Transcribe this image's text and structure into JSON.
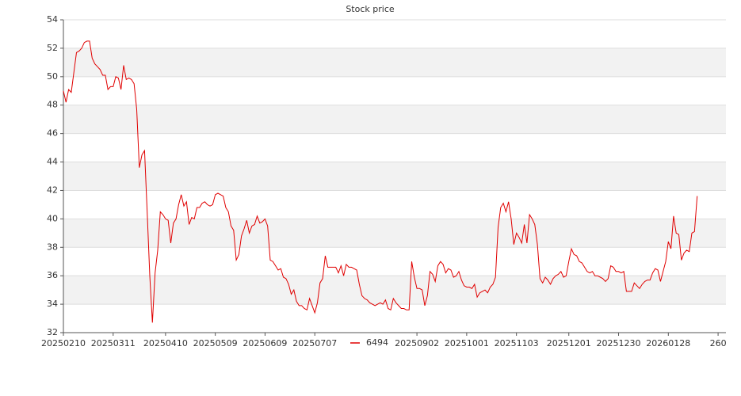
{
  "chart_data": {
    "type": "line",
    "title": "Stock price",
    "xlim": [
      0,
      253
    ],
    "xticks": [
      {
        "value": 0,
        "label": "20250210"
      },
      {
        "value": 19,
        "label": "20250311"
      },
      {
        "value": 39,
        "label": "20250410"
      },
      {
        "value": 58,
        "label": "20250509"
      },
      {
        "value": 77,
        "label": "20250609"
      },
      {
        "value": 96,
        "label": "20250707"
      },
      {
        "value": 135,
        "label": "20250902"
      },
      {
        "value": 154,
        "label": "20251001"
      },
      {
        "value": 173,
        "label": "20251103"
      },
      {
        "value": 193,
        "label": "20251201"
      },
      {
        "value": 212,
        "label": "20251230"
      },
      {
        "value": 231,
        "label": "20260128"
      },
      {
        "value": 250,
        "label": "260"
      }
    ],
    "ylim": [
      32,
      54
    ],
    "yticks": [
      32,
      34,
      36,
      38,
      40,
      42,
      44,
      46,
      48,
      50,
      52,
      54
    ],
    "grid": true,
    "legend": "bottom",
    "series": [
      {
        "name": "6494",
        "color": "#e00000",
        "values": [
          49.0,
          48.2,
          49.1,
          48.9,
          50.3,
          51.7,
          51.8,
          52.0,
          52.4,
          52.5,
          52.5,
          51.3,
          50.9,
          50.7,
          50.5,
          50.1,
          50.1,
          49.1,
          49.3,
          49.3,
          50.0,
          49.9,
          49.1,
          50.8,
          49.8,
          49.9,
          49.8,
          49.5,
          47.7,
          43.6,
          44.5,
          44.8,
          40.5,
          36.0,
          32.7,
          36.2,
          37.8,
          40.5,
          40.3,
          40.0,
          39.9,
          38.3,
          39.7,
          40.0,
          41.0,
          41.7,
          40.9,
          41.2,
          39.6,
          40.1,
          40.0,
          40.8,
          40.8,
          41.1,
          41.2,
          41.0,
          40.9,
          41.0,
          41.7,
          41.8,
          41.7,
          41.6,
          40.8,
          40.5,
          39.5,
          39.2,
          37.1,
          37.5,
          38.8,
          39.3,
          39.9,
          39.0,
          39.5,
          39.6,
          40.2,
          39.7,
          39.8,
          40.0,
          39.5,
          37.1,
          37.0,
          36.7,
          36.4,
          36.5,
          35.9,
          35.8,
          35.4,
          34.7,
          35.0,
          34.2,
          33.9,
          33.9,
          33.7,
          33.6,
          34.4,
          33.9,
          33.4,
          34.1,
          35.5,
          35.8,
          37.4,
          36.6,
          36.6,
          36.6,
          36.6,
          36.2,
          36.7,
          36.0,
          36.8,
          36.6,
          36.6,
          36.5,
          36.4,
          35.4,
          34.6,
          34.4,
          34.3,
          34.1,
          34.0,
          33.9,
          34.0,
          34.1,
          34.0,
          34.3,
          33.7,
          33.6,
          34.4,
          34.1,
          33.9,
          33.7,
          33.7,
          33.6,
          33.6,
          37.0,
          35.9,
          35.1,
          35.1,
          35.0,
          33.9,
          34.6,
          36.3,
          36.1,
          35.6,
          36.7,
          37.0,
          36.8,
          36.2,
          36.5,
          36.4,
          35.9,
          36.0,
          36.3,
          35.7,
          35.3,
          35.2,
          35.2,
          35.1,
          35.4,
          34.5,
          34.8,
          34.9,
          35.0,
          34.8,
          35.2,
          35.4,
          35.9,
          39.4,
          40.8,
          41.1,
          40.5,
          41.2,
          40.0,
          38.2,
          39.0,
          38.7,
          38.3,
          39.6,
          38.3,
          40.3,
          40.0,
          39.6,
          38.2,
          35.8,
          35.5,
          35.9,
          35.7,
          35.4,
          35.8,
          36.0,
          36.1,
          36.3,
          35.9,
          36.0,
          37.0,
          37.9,
          37.5,
          37.4,
          37.0,
          36.9,
          36.6,
          36.3,
          36.2,
          36.3,
          36.0,
          36.0,
          35.9,
          35.8,
          35.6,
          35.8,
          36.7,
          36.6,
          36.3,
          36.3,
          36.2,
          36.3,
          34.9,
          34.9,
          34.9,
          35.5,
          35.3,
          35.1,
          35.4,
          35.6,
          35.7,
          35.7,
          36.2,
          36.5,
          36.4,
          35.6,
          36.3,
          37.0,
          38.4,
          37.9,
          40.2,
          39.0,
          38.9,
          37.1,
          37.6,
          37.8,
          37.7,
          39.0,
          39.1,
          41.6
        ]
      }
    ]
  }
}
